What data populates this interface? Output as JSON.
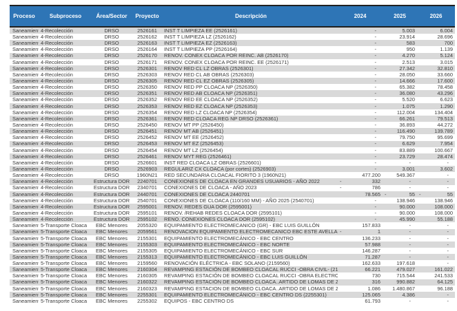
{
  "colors": {
    "header_bg": "#2E75B6",
    "header_text": "#FFFFFF",
    "stripe": "#D9D9D9",
    "border": "#1F1F1F",
    "text": "#3A3A3A"
  },
  "table": {
    "columns": [
      "Proceso",
      "Subproceso",
      "Área/Sector",
      "Proyecto",
      "Descripción",
      "2024",
      "2025",
      "2026"
    ],
    "rows": [
      {
        "proceso": "Saneamiento",
        "subproceso": "4-Recolección",
        "area": "DRSO",
        "proyecto": "2526161",
        "descripcion": "INST T LIMPIEZA EE (2526161)",
        "y2024": "-",
        "y2025": "5.003",
        "y2026": "6.004"
      },
      {
        "proceso": "Saneamiento",
        "subproceso": "4-Recolección",
        "area": "DRSO",
        "proyecto": "2526162",
        "descripcion": "INST T LIMPIEZA LZ (2526162)",
        "y2024": "-",
        "y2025": "23.914",
        "y2026": "28.696"
      },
      {
        "proceso": "Saneamiento",
        "subproceso": "4-Recolección",
        "area": "DRSO",
        "proyecto": "2526163",
        "descripcion": "INST T LIMPIEZA EZ (2526163)",
        "y2024": "-",
        "y2025": "583",
        "y2026": "700"
      },
      {
        "proceso": "Saneamiento",
        "subproceso": "4-Recolección",
        "area": "DRSO",
        "proyecto": "2526164",
        "descripcion": "INST T LIMPIEZA PP (2526164)",
        "y2024": "-",
        "y2025": "950",
        "y2026": "1.139"
      },
      {
        "proceso": "Saneamiento",
        "subproceso": "4-Recolección",
        "area": "DRSO",
        "proyecto": "2526170",
        "descripcion": "RENOV. CONEX CLOACA POR REINC. AB (2526170)",
        "y2024": "-",
        "y2025": "4.270",
        "y2026": "5.124"
      },
      {
        "proceso": "Saneamiento",
        "subproceso": "4-Recolección",
        "area": "DRSO",
        "proyecto": "2526171",
        "descripcion": "RENOV. CONEX CLOACA POR REINC. EE (2526171)",
        "y2024": "-",
        "y2025": "2.513",
        "y2026": "3.015"
      },
      {
        "proceso": "Saneamiento",
        "subproceso": "4-Recolección",
        "area": "DRSO",
        "proyecto": "2526301",
        "descripcion": "RENOV RED CL LZ OBRAS (2526301)",
        "y2024": "-",
        "y2025": "27.342",
        "y2026": "32.810"
      },
      {
        "proceso": "Saneamiento",
        "subproceso": "4-Recolección",
        "area": "DRSO",
        "proyecto": "2526303",
        "descripcion": "RENOV RED CL AB OBRAS (2526303)",
        "y2024": "-",
        "y2025": "28.050",
        "y2026": "33.660"
      },
      {
        "proceso": "Saneamiento",
        "subproceso": "4-Recolección",
        "area": "DRSO",
        "proyecto": "2526305",
        "descripcion": "RENOV RED CL EZ OBRAS (2526305)",
        "y2024": "-",
        "y2025": "14.666",
        "y2026": "17.600"
      },
      {
        "proceso": "Saneamiento",
        "subproceso": "4-Recolección",
        "area": "DRSO",
        "proyecto": "2526350",
        "descripcion": "RENOV RED PP CLOACA NP (2526350)",
        "y2024": "-",
        "y2025": "65.382",
        "y2026": "78.458"
      },
      {
        "proceso": "Saneamiento",
        "subproceso": "4-Recolección",
        "area": "DRSO",
        "proyecto": "2526351",
        "descripcion": "RENOV RED AB CLOACA NP (2526351)",
        "y2024": "-",
        "y2025": "36.080",
        "y2026": "43.296"
      },
      {
        "proceso": "Saneamiento",
        "subproceso": "4-Recolección",
        "area": "DRSO",
        "proyecto": "2526352",
        "descripcion": "RENOV RED EE CLOACA NP (2526352)",
        "y2024": "-",
        "y2025": "5.520",
        "y2026": "6.623"
      },
      {
        "proceso": "Saneamiento",
        "subproceso": "4-Recolección",
        "area": "DRSO",
        "proyecto": "2526353",
        "descripcion": "RENOV RED EZ CLOACA NP (2526353)",
        "y2024": "-",
        "y2025": "1.075",
        "y2026": "1.290"
      },
      {
        "proceso": "Saneamiento",
        "subproceso": "4-Recolección",
        "area": "DRSO",
        "proyecto": "2526354",
        "descripcion": "RENOV RED LZ CLOACA NP (2526354)",
        "y2024": "-",
        "y2025": "112.004",
        "y2026": "134.404"
      },
      {
        "proceso": "Saneamiento",
        "subproceso": "4-Recolección",
        "area": "DRSO",
        "proyecto": "2526361",
        "descripcion": "RENOV RED CLOACA REG NP DRSO (2526361)",
        "y2024": "-",
        "y2025": "66.261",
        "y2026": "79.513"
      },
      {
        "proceso": "Saneamiento",
        "subproceso": "4-Recolección",
        "area": "DRSO",
        "proyecto": "2526450",
        "descripcion": "RENOV MT PP (2526450)",
        "y2024": "-",
        "y2025": "36.893",
        "y2026": "44.272"
      },
      {
        "proceso": "Saneamiento",
        "subproceso": "4-Recolección",
        "area": "DRSO",
        "proyecto": "2526451",
        "descripcion": "RENOV MT AB (2526451)",
        "y2024": "-",
        "y2025": "116.490",
        "y2026": "139.789"
      },
      {
        "proceso": "Saneamiento",
        "subproceso": "4-Recolección",
        "area": "DRSO",
        "proyecto": "2526452",
        "descripcion": "RENOV MT EE (2526452)",
        "y2024": "-",
        "y2025": "79.750",
        "y2026": "95.699"
      },
      {
        "proceso": "Saneamiento",
        "subproceso": "4-Recolección",
        "area": "DRSO",
        "proyecto": "2526453",
        "descripcion": "RENOV MT EZ (2526453)",
        "y2024": "-",
        "y2025": "6.629",
        "y2026": "7.954"
      },
      {
        "proceso": "Saneamiento",
        "subproceso": "4-Recolección",
        "area": "DRSO",
        "proyecto": "2526454",
        "descripcion": "RENOV MT LZ (2526454)",
        "y2024": "-",
        "y2025": "83.889",
        "y2026": "100.667"
      },
      {
        "proceso": "Saneamiento",
        "subproceso": "4-Recolección",
        "area": "DRSO",
        "proyecto": "2526461",
        "descripcion": "RENOV MYT REG (2526461)",
        "y2024": "-",
        "y2025": "23.729",
        "y2026": "28.474"
      },
      {
        "proceso": "Saneamiento",
        "subproceso": "4-Recolección",
        "area": "DRSO",
        "proyecto": "2526601",
        "descripcion": "INST RED CLOACA LZ OBRAS (2526601)",
        "y2024": "-",
        "y2025": "-",
        "y2026": "-"
      },
      {
        "proceso": "Saneamiento",
        "subproceso": "4-Recolección",
        "area": "DRSO",
        "proyecto": "2526903",
        "descripcion": "REGULARIZ CX CLOACA (por cortes) (2526903)",
        "y2024": "-",
        "y2025": "3.001",
        "y2026": "3.602"
      },
      {
        "proceso": "Saneamiento",
        "subproceso": "4-Recolección",
        "area": "DRSO",
        "proyecto": "1960N21",
        "descripcion": "RED SECUNDARIA CLOACAL FIORITO 3 (1960N21)",
        "y2024": "477.200",
        "y2025": "549.367",
        "y2026": "-"
      },
      {
        "proceso": "Saneamiento",
        "subproceso": "4-Recolección",
        "area": "Estructura DOR",
        "proyecto": "2240701",
        "descripcion": "CONEXIONES DE CLOACA EN GRANDES USUARIOS - AÑO 2022",
        "y2024": "neg:332",
        "y2025": "-",
        "y2026": "-"
      },
      {
        "proceso": "Saneamiento",
        "subproceso": "4-Recolección",
        "area": "Estructura DOR",
        "proyecto": "2340701",
        "descripcion": "CONEXIONES DE CLOACA - AÑO 2023",
        "y2024": "neg:786",
        "y2025": "-",
        "y2026": "-"
      },
      {
        "proceso": "Saneamiento",
        "subproceso": "4-Recolección",
        "area": "Estructura DOR",
        "proyecto": "2440701",
        "descripcion": "CONEXIONES DE CLOACA 2440701",
        "y2024": "78.565",
        "y2025": "neg:55",
        "y2026": "neg:55"
      },
      {
        "proceso": "Saneamiento",
        "subproceso": "4-Recolección",
        "area": "Estructura DOR",
        "proyecto": "2540701",
        "descripcion": "CONEXIONES DE CLOACA (110/160 MM) - AÑO 2025 (2540701)",
        "y2024": "-",
        "y2025": "138.946",
        "y2026": "138.946"
      },
      {
        "proceso": "Saneamiento",
        "subproceso": "4-Recolección",
        "area": "Estructura DOR",
        "proyecto": "2595001",
        "descripcion": "RENOV. REDES GUA DOR (2595001)",
        "y2024": "-",
        "y2025": "90.000",
        "y2026": "108.000"
      },
      {
        "proceso": "Saneamiento",
        "subproceso": "4-Recolección",
        "area": "Estructura DOR",
        "proyecto": "2595101",
        "descripcion": "RENOV. /REHAB REDES CLOACA DOR (2595101)",
        "y2024": "-",
        "y2025": "90.000",
        "y2026": "108.000"
      },
      {
        "proceso": "Saneamiento",
        "subproceso": "4-Recolección",
        "area": "Estructura DOR",
        "proyecto": "2595102",
        "descripcion": "RENO. CONEXIONES CLOACA DOR (2595102)",
        "y2024": "-",
        "y2025": "45.990",
        "y2026": "55.188"
      },
      {
        "proceso": "Saneamiento",
        "subproceso": "5-Transporte Cloaca",
        "area": "EBC Menores",
        "proyecto": "2055320",
        "descripcion": "EQUIPAMIENTO ELECTROMECANICO (GR) - EBC LUIS GUILLÓN",
        "y2024": "157.833",
        "y2025": "-",
        "y2026": "-"
      },
      {
        "proceso": "Saneamiento",
        "subproceso": "5-Transporte Cloaca",
        "area": "EBC Menores",
        "proyecto": "2059561",
        "descripcion": "RENOVACION EQUIPAMIENTO ELECTROMECANICO EBC ESTE AVELLANEDA",
        "y2024": "neg:1",
        "y2025": "-",
        "y2026": "-"
      },
      {
        "proceso": "Saneamiento",
        "subproceso": "5-Transporte Cloaca",
        "area": "EBC Menores",
        "proyecto": "2155301",
        "descripcion": "EQUIPAMIENTO ELECTROMECÁNICO - EBC CENTRO",
        "y2024": "136.233",
        "y2025": "-",
        "y2026": "-"
      },
      {
        "proceso": "Saneamiento",
        "subproceso": "5-Transporte Cloaca",
        "area": "EBC Menores",
        "proyecto": "2155303",
        "descripcion": "EQUIPAMIENTO ELECTROMECÁNICO - EBC NORTE",
        "y2024": "57.988",
        "y2025": "-",
        "y2026": "-"
      },
      {
        "proceso": "Saneamiento",
        "subproceso": "5-Transporte Cloaca",
        "area": "EBC Menores",
        "proyecto": "2155305",
        "descripcion": "EQUIPAMIENTO ELECTROMECÁNICO - EBC SUR",
        "y2024": "146.287",
        "y2025": "-",
        "y2026": "-"
      },
      {
        "proceso": "Saneamiento",
        "subproceso": "5-Transporte Cloaca",
        "area": "EBC Menores",
        "proyecto": "2155313",
        "descripcion": "EQUIPAMIENTO ELECTROMECÁNICO - EBC LUIS GUILLÓN",
        "y2024": "71.287",
        "y2025": "-",
        "y2026": "-"
      },
      {
        "proceso": "Saneamiento",
        "subproceso": "5-Transporte Cloaca",
        "area": "EBC Menores",
        "proyecto": "2159560",
        "descripcion": "RENOVACIÓN ELÉCTRICA - EBC SOLANO (2159560)",
        "y2024": "162.633",
        "y2025": "197.618",
        "y2026": "-"
      },
      {
        "proceso": "Saneamiento",
        "subproceso": "5-Transporte Cloaca",
        "area": "EBC Menores",
        "proyecto": "2160304",
        "descripcion": "REVAMPING ESTACIÓN DE BOMBEO CLOACAL RUCCI -OBRA CIVIL- (2160304)",
        "y2024": "66.221",
        "y2025": "479.027",
        "y2026": "161.022"
      },
      {
        "proceso": "Saneamiento",
        "subproceso": "5-Transporte Cloaca",
        "area": "EBC Menores",
        "proyecto": "2160305",
        "descripcion": "REVAMPING ESTACIÓN DE BOMBEO CLOACAL RUCCI -OBRA ELECTROMECÁNICA (2160305)",
        "y2024": "730",
        "y2025": "715.544",
        "y2026": "241.533"
      },
      {
        "proceso": "Saneamiento",
        "subproceso": "5-Transporte Cloaca",
        "area": "EBC Menores",
        "proyecto": "2160322",
        "descripcion": "REVAMPING ESTACIÓN DE BOMBEO CLOACA..ARTIDO DE LOMAS DE ZAMORA (2160322)",
        "y2024": "316",
        "y2025": "990.882",
        "y2026": "64.125"
      },
      {
        "proceso": "Saneamiento",
        "subproceso": "5-Transporte Cloaca",
        "area": "EBC Menores",
        "proyecto": "2160323",
        "descripcion": "REVAMPING ESTACION DE BOMBEO CLOACA..ARTIDO DE LOMAS DE ZAMORA (2160323)",
        "y2024": "1.086",
        "y2025": "1.480.867",
        "y2026": "96.188"
      },
      {
        "proceso": "Saneamiento",
        "subproceso": "5-Transporte Cloaca",
        "area": "EBC Menores",
        "proyecto": "2255301",
        "descripcion": "EQUIPAMIENTO ELECTROMECÁNICO - EBC CENTRO DS (2255301)",
        "y2024": "125.065",
        "y2025": "4.386",
        "y2026": "-"
      },
      {
        "proceso": "Saneamiento",
        "subproceso": "5-Transporte Cloaca",
        "area": "EBC Menores",
        "proyecto": "2255302",
        "descripcion": "EQUIPOS - EBC CENTRO DS",
        "y2024": "61.793",
        "y2025": "-",
        "y2026": "-"
      }
    ]
  }
}
